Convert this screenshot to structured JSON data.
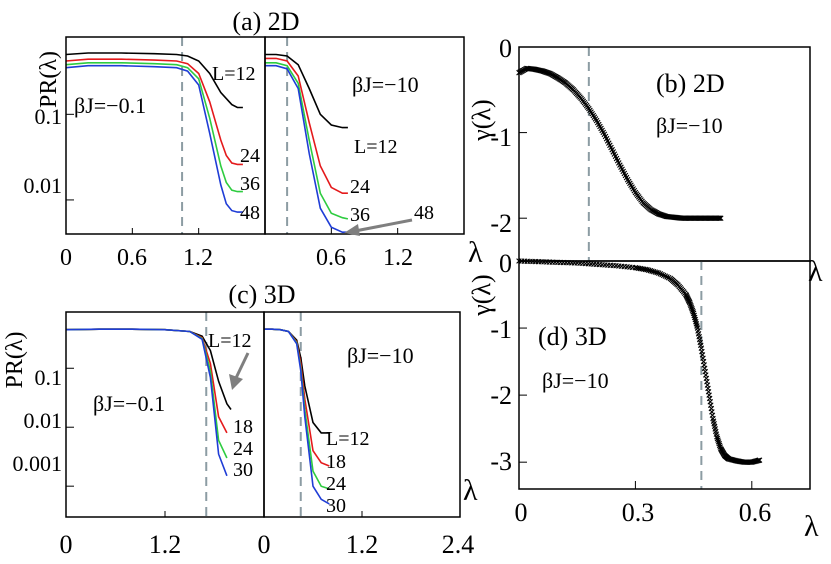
{
  "colors": {
    "axis": "#000000",
    "dashed_line": "#8c9ca3",
    "arrow": "#7f7f7f",
    "series_black": "#000000",
    "series_red": "#e41a1c",
    "series_green": "#2ecc40",
    "series_blue": "#1f3dd6"
  },
  "chart_data": [
    {
      "id": "a",
      "type": "line",
      "panel_title": "(a) 2D",
      "ylabel": "PR(λ)",
      "yscale": "log",
      "subplots": [
        {
          "side": "left",
          "annotation": "βJ=−0.1",
          "xlim": [
            0,
            1.8
          ],
          "ylim": [
            0.004,
            0.8
          ],
          "xticks": [
            0,
            0.6,
            1.2
          ],
          "yticks": [
            0.01,
            0.1
          ],
          "dashed_x": 1.05,
          "series": [
            {
              "name": "L=12",
              "color": "series_black",
              "label": "L=12",
              "x": [
                0,
                0.2,
                0.5,
                0.8,
                1.0,
                1.1,
                1.2,
                1.3,
                1.4,
                1.5,
                1.55,
                1.6
              ],
              "y": [
                0.5,
                0.52,
                0.52,
                0.51,
                0.5,
                0.48,
                0.42,
                0.3,
                0.18,
                0.13,
                0.12,
                0.12
              ]
            },
            {
              "name": "L=24",
              "color": "series_red",
              "label": "24",
              "x": [
                0,
                0.2,
                0.5,
                0.8,
                1.0,
                1.1,
                1.2,
                1.3,
                1.4,
                1.45,
                1.5,
                1.55,
                1.6
              ],
              "y": [
                0.42,
                0.44,
                0.44,
                0.43,
                0.42,
                0.39,
                0.3,
                0.14,
                0.05,
                0.033,
                0.027,
                0.026,
                0.026
              ]
            },
            {
              "name": "L=36",
              "color": "series_green",
              "label": "36",
              "x": [
                0,
                0.2,
                0.5,
                0.8,
                1.0,
                1.1,
                1.2,
                1.3,
                1.4,
                1.45,
                1.5,
                1.55,
                1.6
              ],
              "y": [
                0.38,
                0.4,
                0.4,
                0.39,
                0.38,
                0.35,
                0.26,
                0.09,
                0.025,
                0.016,
                0.013,
                0.0125,
                0.0125
              ]
            },
            {
              "name": "L=48",
              "color": "series_blue",
              "label": "48",
              "x": [
                0,
                0.2,
                0.5,
                0.8,
                1.0,
                1.1,
                1.2,
                1.3,
                1.4,
                1.45,
                1.5,
                1.55,
                1.6
              ],
              "y": [
                0.35,
                0.37,
                0.37,
                0.36,
                0.35,
                0.32,
                0.22,
                0.06,
                0.015,
                0.009,
                0.0075,
                0.0072,
                0.0072
              ]
            }
          ]
        },
        {
          "side": "right",
          "annotation": "βJ=−10",
          "xlim": [
            0,
            1.8
          ],
          "ylim": [
            0.004,
            0.8
          ],
          "xticks": [
            0.6,
            1.2
          ],
          "dashed_x": 0.2,
          "arrow_label": "48",
          "series": [
            {
              "name": "L=12",
              "color": "series_black",
              "label": "L=12",
              "x": [
                0,
                0.1,
                0.2,
                0.3,
                0.4,
                0.5,
                0.6,
                0.7,
                0.75
              ],
              "y": [
                0.5,
                0.5,
                0.48,
                0.38,
                0.2,
                0.1,
                0.075,
                0.07,
                0.07
              ]
            },
            {
              "name": "L=24",
              "color": "series_red",
              "label": "24",
              "x": [
                0,
                0.1,
                0.2,
                0.3,
                0.4,
                0.5,
                0.6,
                0.7,
                0.75
              ],
              "y": [
                0.45,
                0.45,
                0.42,
                0.28,
                0.08,
                0.025,
                0.014,
                0.012,
                0.012
              ]
            },
            {
              "name": "L=36",
              "color": "series_green",
              "label": "36",
              "x": [
                0,
                0.1,
                0.2,
                0.3,
                0.4,
                0.5,
                0.6,
                0.7,
                0.75
              ],
              "y": [
                0.4,
                0.4,
                0.37,
                0.23,
                0.05,
                0.012,
                0.007,
                0.0062,
                0.006
              ]
            },
            {
              "name": "L=48",
              "color": "series_blue",
              "label": "48",
              "x": [
                0,
                0.1,
                0.2,
                0.3,
                0.4,
                0.5,
                0.6,
                0.7,
                0.75
              ],
              "y": [
                0.37,
                0.37,
                0.34,
                0.2,
                0.035,
                0.008,
                0.0048,
                0.0042,
                0.0042
              ]
            }
          ]
        }
      ],
      "xlabel": "λ"
    },
    {
      "id": "b",
      "type": "scatter",
      "panel_title": "(b) 2D",
      "annotation": "βJ=−10",
      "ylabel": "γ(λ)",
      "xlim": [
        0,
        0.75
      ],
      "ylim": [
        -2.5,
        0
      ],
      "yticks": [
        0,
        -1,
        -2
      ],
      "dashed_x": 0.18,
      "x": [
        0.0,
        0.02,
        0.04,
        0.06,
        0.08,
        0.1,
        0.12,
        0.14,
        0.16,
        0.18,
        0.2,
        0.22,
        0.24,
        0.26,
        0.28,
        0.3,
        0.32,
        0.34,
        0.36,
        0.38,
        0.4,
        0.42,
        0.44,
        0.46,
        0.48,
        0.5,
        0.52
      ],
      "y": [
        -0.3,
        -0.25,
        -0.26,
        -0.28,
        -0.31,
        -0.36,
        -0.42,
        -0.5,
        -0.6,
        -0.72,
        -0.86,
        -1.02,
        -1.2,
        -1.38,
        -1.55,
        -1.7,
        -1.82,
        -1.9,
        -1.95,
        -1.98,
        -1.99,
        -2.0,
        -2.0,
        -2.0,
        -2.0,
        -2.0,
        -2.0
      ]
    },
    {
      "id": "c",
      "type": "line",
      "panel_title": "(c) 3D",
      "ylabel": "PR(λ)",
      "yscale": "log",
      "subplots": [
        {
          "side": "left",
          "annotation": "βJ=−0.1",
          "xlim": [
            0,
            2.4
          ],
          "ylim": [
            0.0003,
            0.9
          ],
          "xticks": [
            0,
            1.2
          ],
          "yticks": [
            0.001,
            0.01,
            0.1
          ],
          "dashed_x": 1.7,
          "arrow_label": "L=12",
          "series": [
            {
              "name": "L=12",
              "color": "series_black",
              "label": "L=12",
              "x": [
                0,
                0.4,
                0.8,
                1.2,
                1.5,
                1.65,
                1.75,
                1.85,
                1.95,
                2.0
              ],
              "y": [
                0.45,
                0.46,
                0.46,
                0.45,
                0.42,
                0.35,
                0.2,
                0.06,
                0.025,
                0.02
              ]
            },
            {
              "name": "L=18",
              "color": "series_red",
              "label": "18",
              "x": [
                0,
                0.4,
                0.8,
                1.2,
                1.5,
                1.65,
                1.75,
                1.85,
                1.95
              ],
              "y": [
                0.45,
                0.46,
                0.46,
                0.45,
                0.42,
                0.33,
                0.12,
                0.015,
                0.008
              ]
            },
            {
              "name": "L=24",
              "color": "series_green",
              "label": "24",
              "x": [
                0,
                0.4,
                0.8,
                1.2,
                1.5,
                1.65,
                1.75,
                1.85,
                1.95
              ],
              "y": [
                0.45,
                0.46,
                0.46,
                0.45,
                0.42,
                0.32,
                0.09,
                0.006,
                0.003
              ]
            },
            {
              "name": "L=30",
              "color": "series_blue",
              "label": "30",
              "x": [
                0,
                0.4,
                0.8,
                1.2,
                1.5,
                1.65,
                1.75,
                1.85,
                1.95
              ],
              "y": [
                0.45,
                0.46,
                0.46,
                0.45,
                0.42,
                0.31,
                0.07,
                0.0035,
                0.0015
              ]
            }
          ]
        },
        {
          "side": "right",
          "annotation": "βJ=−10",
          "xlim": [
            0,
            2.4
          ],
          "ylim": [
            0.0003,
            0.9
          ],
          "xticks": [
            0,
            1.2,
            2.4
          ],
          "dashed_x": 0.45,
          "series": [
            {
              "name": "L=12",
              "color": "series_black",
              "label": "L=12",
              "x": [
                0,
                0.1,
                0.2,
                0.3,
                0.4,
                0.45,
                0.5,
                0.6,
                0.7,
                0.8
              ],
              "y": [
                0.46,
                0.46,
                0.45,
                0.42,
                0.3,
                0.15,
                0.05,
                0.012,
                0.008,
                0.008
              ]
            },
            {
              "name": "L=18",
              "color": "series_red",
              "label": "18",
              "x": [
                0,
                0.1,
                0.2,
                0.3,
                0.4,
                0.45,
                0.5,
                0.6,
                0.7,
                0.8
              ],
              "y": [
                0.46,
                0.46,
                0.45,
                0.42,
                0.28,
                0.12,
                0.03,
                0.004,
                0.0025,
                0.0022
              ]
            },
            {
              "name": "L=24",
              "color": "series_green",
              "label": "24",
              "x": [
                0,
                0.1,
                0.2,
                0.3,
                0.4,
                0.45,
                0.5,
                0.6,
                0.7,
                0.8
              ],
              "y": [
                0.46,
                0.46,
                0.45,
                0.42,
                0.27,
                0.1,
                0.02,
                0.0018,
                0.001,
                0.0009
              ]
            },
            {
              "name": "L=30",
              "color": "series_blue",
              "label": "30",
              "x": [
                0,
                0.1,
                0.2,
                0.3,
                0.4,
                0.45,
                0.5,
                0.6,
                0.7,
                0.8
              ],
              "y": [
                0.46,
                0.46,
                0.45,
                0.42,
                0.26,
                0.09,
                0.015,
                0.001,
                0.0006,
                0.0005
              ]
            }
          ]
        }
      ],
      "xlabel": "λ"
    },
    {
      "id": "d",
      "type": "scatter",
      "panel_title": "(d) 3D",
      "annotation": "βJ=−10",
      "ylabel": "γ(λ)",
      "xlim": [
        0,
        0.75
      ],
      "ylim": [
        -3.4,
        0
      ],
      "xticks": [
        0,
        0.3,
        0.6
      ],
      "yticks": [
        0,
        -1,
        -2,
        -3
      ],
      "dashed_x": 0.47,
      "xlabel": "λ",
      "x": [
        0.0,
        0.05,
        0.1,
        0.15,
        0.2,
        0.25,
        0.3,
        0.33,
        0.36,
        0.39,
        0.41,
        0.43,
        0.44,
        0.45,
        0.46,
        0.47,
        0.48,
        0.49,
        0.5,
        0.51,
        0.52,
        0.53,
        0.54,
        0.56,
        0.58,
        0.6,
        0.62
      ],
      "y": [
        0.0,
        -0.01,
        -0.02,
        -0.03,
        -0.05,
        -0.07,
        -0.1,
        -0.13,
        -0.18,
        -0.26,
        -0.36,
        -0.5,
        -0.62,
        -0.78,
        -1.0,
        -1.3,
        -1.65,
        -2.0,
        -2.35,
        -2.62,
        -2.8,
        -2.9,
        -2.95,
        -2.98,
        -3.0,
        -3.0,
        -2.97
      ]
    }
  ],
  "panel_labels": {
    "a_xticks": [
      "0",
      "0.6",
      "1.2",
      "0.6",
      "1.2"
    ],
    "a_yticks": [
      "0.01",
      "0.1"
    ],
    "b_yticks": [
      "0",
      "-1",
      "-2"
    ],
    "c_xticks": [
      "0",
      "1.2",
      "0",
      "1.2",
      "2.4"
    ],
    "c_yticks": [
      "0.001",
      "0.01",
      "0.1"
    ],
    "d_xticks": [
      "0",
      "0.3",
      "0.6"
    ],
    "d_yticks": [
      "0",
      "-1",
      "-2",
      "-3"
    ]
  }
}
